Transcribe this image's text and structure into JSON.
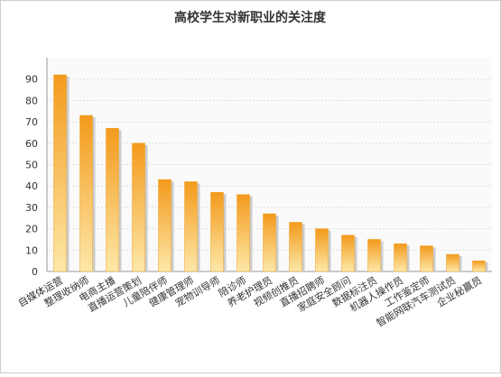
{
  "chart_data": {
    "type": "bar",
    "title": "高校学生对新职业的关注度",
    "categories": [
      "自媒体运营",
      "整理收纳师",
      "电商主播",
      "直播运营策划",
      "儿童陪伴师",
      "健康管理师",
      "宠物训导师",
      "陪诊师",
      "养老护理员",
      "视频创推员",
      "直播招聘师",
      "家庭安全顾问",
      "数据标注员",
      "机器人操作员",
      "工作鉴定师",
      "智能网联汽车测试员",
      "企业秘赢员"
    ],
    "values": [
      92,
      73,
      67,
      60,
      43,
      42,
      37,
      36,
      27,
      23,
      20,
      17,
      15,
      13,
      12,
      8,
      5
    ],
    "color": "#f0a020",
    "ylim": [
      0,
      100
    ],
    "yticks": [
      0,
      10,
      20,
      30,
      40,
      50,
      60,
      70,
      80,
      90
    ],
    "grid": true
  }
}
